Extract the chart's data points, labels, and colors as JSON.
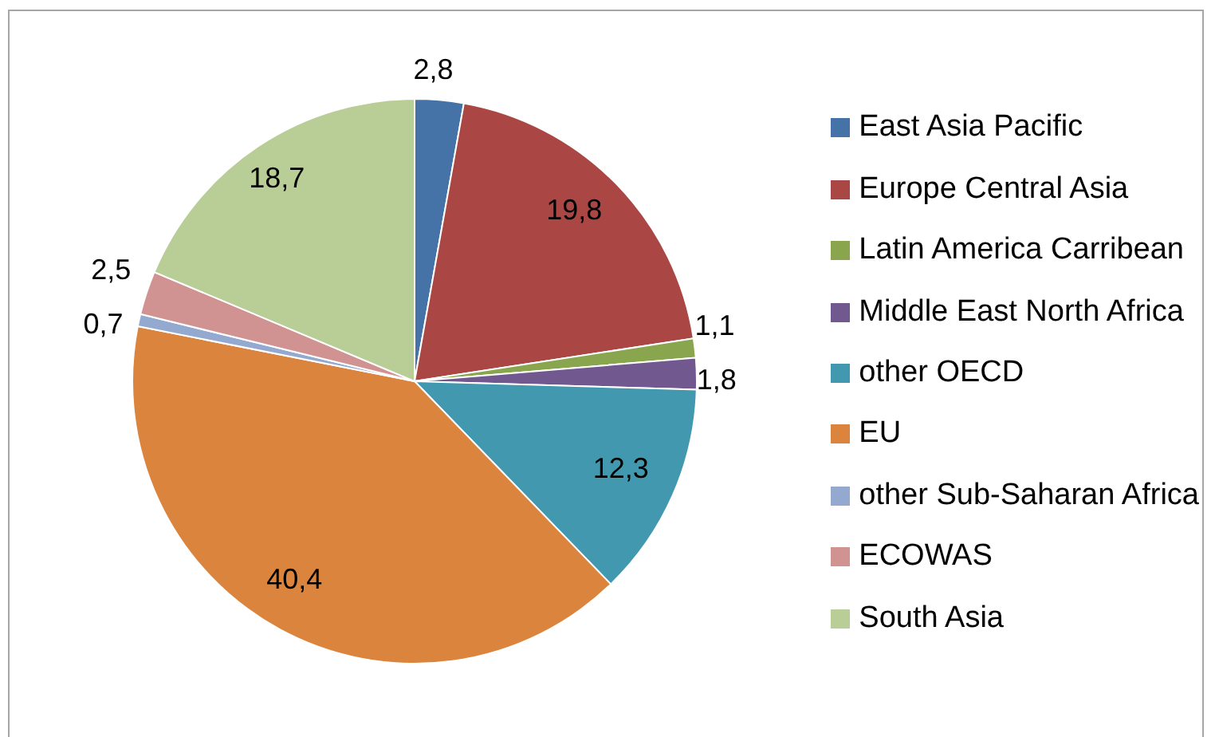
{
  "chart_data": {
    "type": "pie",
    "categories": [
      "East Asia Pacific",
      "Europe Central Asia",
      "Latin America Carribean",
      "Middle East North Africa",
      "other OECD",
      "EU",
      "other Sub-Saharan Africa",
      "ECOWAS",
      "South Asia"
    ],
    "values": [
      2.8,
      19.8,
      1.1,
      1.8,
      12.3,
      40.4,
      0.7,
      2.5,
      18.7
    ],
    "colors": [
      "#4572a7",
      "#aa4643",
      "#89a54e",
      "#71588f",
      "#4198af",
      "#db843d",
      "#93a9cf",
      "#d19392",
      "#b9cd96"
    ],
    "value_labels": [
      "2,8",
      "19,8",
      "1,1",
      "1,8",
      "12,3",
      "40,4",
      "0,7",
      "2,5",
      "18,7"
    ],
    "legend": "right"
  }
}
